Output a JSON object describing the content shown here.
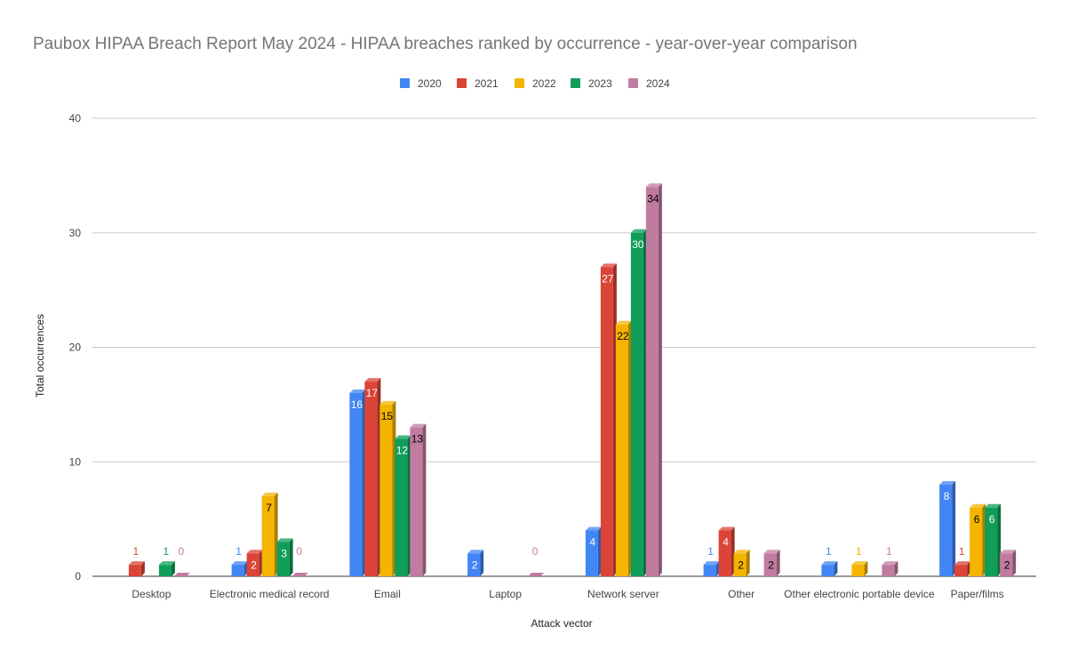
{
  "chart_data": {
    "type": "bar",
    "title": "Paubox HIPAA Breach Report May 2024 - HIPAA breaches ranked by occurrence - year-over-year comparison",
    "xlabel": "Attack vector",
    "ylabel": "Total occurrences",
    "ylim": [
      0,
      40
    ],
    "yticks": [
      "0",
      "10",
      "20",
      "30",
      "40"
    ],
    "grid": true,
    "legend_position": "top",
    "categories": [
      "Desktop",
      "Electronic medical record",
      "Email",
      "Laptop",
      "Network server",
      "Other",
      "Other electronic portable device",
      "Paper/films"
    ],
    "series": [
      {
        "name": "2020",
        "color": "#4285f4",
        "values": [
          null,
          1,
          16,
          2,
          4,
          1,
          1,
          8
        ]
      },
      {
        "name": "2021",
        "color": "#db4437",
        "values": [
          1,
          2,
          17,
          null,
          27,
          4,
          null,
          1
        ]
      },
      {
        "name": "2022",
        "color": "#f4b400",
        "values": [
          null,
          7,
          15,
          null,
          22,
          2,
          1,
          6
        ]
      },
      {
        "name": "2023",
        "color": "#0f9d58",
        "values": [
          1,
          3,
          12,
          null,
          30,
          null,
          null,
          6
        ]
      },
      {
        "name": "2024",
        "color": "#c27ba0",
        "values": [
          0,
          0,
          13,
          0,
          34,
          2,
          1,
          2
        ]
      }
    ]
  }
}
